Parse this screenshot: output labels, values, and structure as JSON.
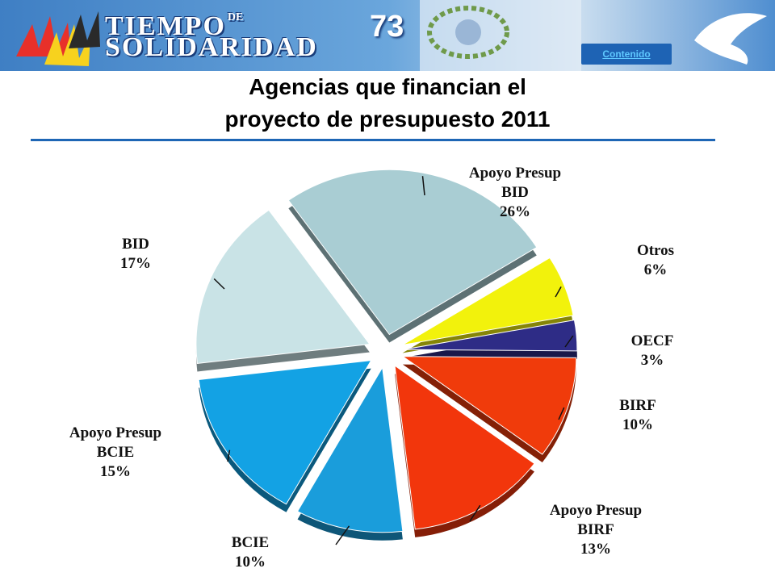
{
  "header": {
    "logo_line1": "TIEMPO",
    "logo_de": "DE",
    "logo_line2": "SOLIDARIDAD",
    "slide_number": "73",
    "contenido_link": "Contenido"
  },
  "title_line1": "Agencias que financian el",
  "title_line2": "proyecto de presupuesto 2011",
  "colors": {
    "banner": "#4f8ed0",
    "title_rule": "#1e66b5"
  },
  "chart_data": {
    "type": "pie",
    "title": "Agencias que financian el proyecto de presupuesto 2011",
    "slices": [
      {
        "name_lines": [
          "Apoyo Presup",
          "BID"
        ],
        "value": 26,
        "pct": "26%",
        "color": "#a9cdd3"
      },
      {
        "name_lines": [
          "Otros"
        ],
        "value": 6,
        "pct": "6%",
        "color": "#f2f20c"
      },
      {
        "name_lines": [
          "OECF"
        ],
        "value": 3,
        "pct": "3%",
        "color": "#2e2c86"
      },
      {
        "name_lines": [
          "BIRF"
        ],
        "value": 10,
        "pct": "10%",
        "color": "#f03b0b"
      },
      {
        "name_lines": [
          "Apoyo Presup",
          "BIRF"
        ],
        "value": 13,
        "pct": "13%",
        "color": "#f2360c"
      },
      {
        "name_lines": [
          "BCIE"
        ],
        "value": 10,
        "pct": "10%",
        "color": "#1a9ddb"
      },
      {
        "name_lines": [
          "Apoyo Presup",
          "BCIE"
        ],
        "value": 15,
        "pct": "15%",
        "color": "#13a2e4"
      },
      {
        "name_lines": [
          "BID"
        ],
        "value": 17,
        "pct": "17%",
        "color": "#c9e3e6"
      }
    ]
  }
}
